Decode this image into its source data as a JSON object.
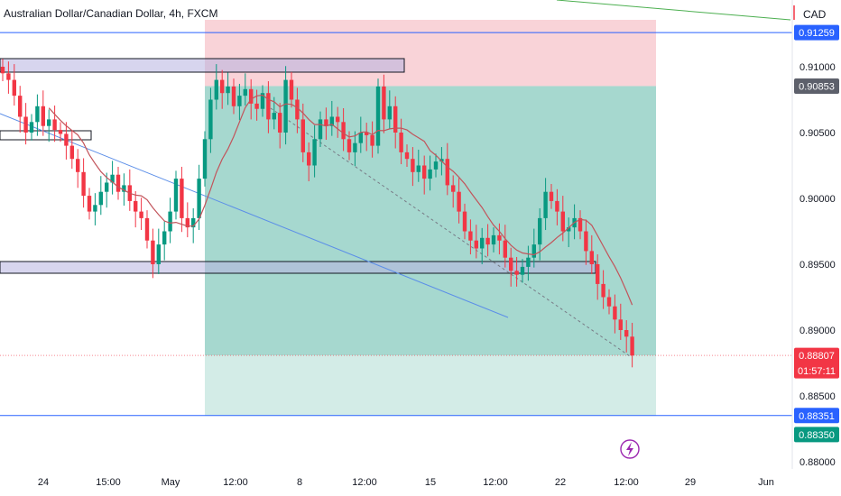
{
  "header": {
    "title": "Australian Dollar/Canadian Dollar, 4h, FXCM",
    "currency": "CAD"
  },
  "colors": {
    "up": "#089981",
    "down": "#F23645",
    "ma": "#C2545B",
    "target_zone": "#A6D8CF",
    "stop_zone": "#F9D3D8",
    "blue_line": "#2962FF",
    "trend_line": "#5B8EE8",
    "zone_box": "#B7B2E0",
    "lightning": "#9C27B0"
  },
  "chart_data": {
    "type": "candlestick",
    "title": "Australian Dollar/Canadian Dollar, 4h, FXCM",
    "ylim": [
      0.8795,
      0.916
    ],
    "y_ticks": [
      "0.91000",
      "0.90500",
      "0.90000",
      "0.89500",
      "0.89000",
      "0.88500",
      "0.88000"
    ],
    "x_ticks": [
      "24",
      "15:00",
      "May",
      "12:00",
      "8",
      "12:00",
      "15",
      "12:00",
      "22",
      "12:00",
      "29",
      "Jun"
    ],
    "price_badges": [
      {
        "value": "0.91259",
        "kind": "blue"
      },
      {
        "value": "0.90853",
        "kind": "gray"
      },
      {
        "value": "0.88807",
        "kind": "red",
        "sub": "01:57:11"
      },
      {
        "value": "0.88351",
        "kind": "blue"
      },
      {
        "value": "0.88350",
        "kind": "green"
      }
    ],
    "horizontal_levels": [
      0.91259,
      0.88351
    ],
    "position": {
      "entry": 0.90853,
      "stop": 0.91259,
      "target": 0.8835
    },
    "current_price": 0.88807,
    "closes": [
      0.9095,
      0.909,
      0.9078,
      0.9062,
      0.905,
      0.9058,
      0.907,
      0.9055,
      0.906,
      0.9052,
      0.9049,
      0.904,
      0.903,
      0.902,
      0.9002,
      0.899,
      0.8995,
      0.9005,
      0.9012,
      0.9018,
      0.9005,
      0.901,
      0.8998,
      0.899,
      0.8985,
      0.8968,
      0.895,
      0.8965,
      0.8975,
      0.899,
      0.9015,
      0.8985,
      0.8978,
      0.8985,
      0.9015,
      0.9045,
      0.9075,
      0.909,
      0.908,
      0.9085,
      0.907,
      0.9078,
      0.9083,
      0.9072,
      0.9068,
      0.908,
      0.906,
      0.9065,
      0.905,
      0.909,
      0.9075,
      0.906,
      0.9035,
      0.9025,
      0.9045,
      0.906,
      0.9055,
      0.9062,
      0.9058,
      0.9045,
      0.9035,
      0.9042,
      0.905,
      0.9048,
      0.904,
      0.9085,
      0.906,
      0.907,
      0.905,
      0.9035,
      0.903,
      0.902,
      0.9025,
      0.9015,
      0.9022,
      0.9028,
      0.903,
      0.901,
      0.9005,
      0.899,
      0.8975,
      0.8968,
      0.8962,
      0.897,
      0.8965,
      0.8972,
      0.8968,
      0.8955,
      0.8945,
      0.8942,
      0.8948,
      0.8955,
      0.8965,
      0.8985,
      0.9005,
      0.8998,
      0.899,
      0.8975,
      0.8978,
      0.8985,
      0.8975,
      0.896,
      0.895,
      0.8935,
      0.8925,
      0.8918,
      0.8908,
      0.89,
      0.8895,
      0.88807
    ]
  }
}
